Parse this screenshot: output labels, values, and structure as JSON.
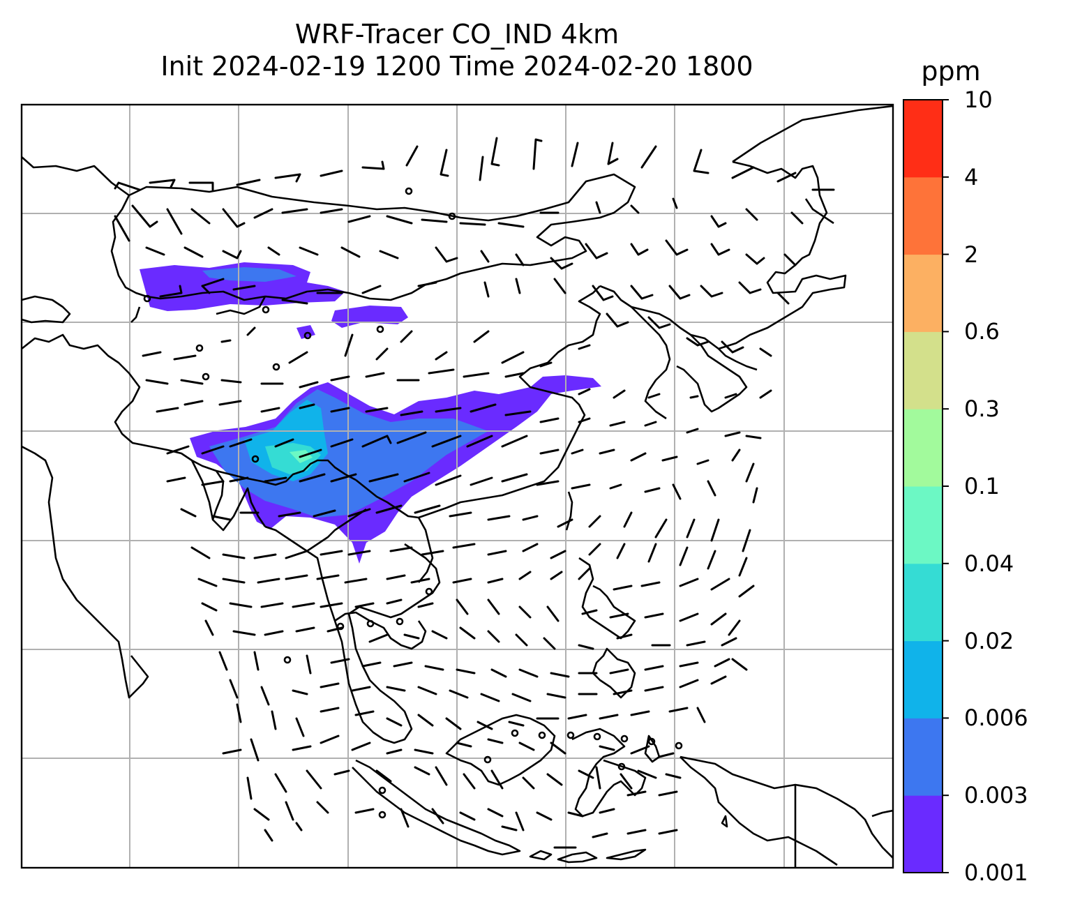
{
  "title": {
    "line1": "WRF-Tracer CO_IND 4km",
    "line2": "Init 2024-02-19 1200 Time 2024-02-20 1800"
  },
  "colorbar": {
    "unit": "ppm",
    "levels": [
      "0.001",
      "0.003",
      "0.006",
      "0.02",
      "0.04",
      "0.1",
      "0.3",
      "0.6",
      "2",
      "4",
      "10"
    ],
    "colors": [
      "#6a2bff",
      "#3d77f0",
      "#10b3ea",
      "#35dcd4",
      "#6cf8c4",
      "#a2fa9c",
      "#d3e08b",
      "#fcb062",
      "#fe7339",
      "#ff2e16"
    ]
  },
  "map": {
    "coastline_color": "#000000",
    "grid_color": "#b0b0b0",
    "concentration_colors": {
      "low": "#6a2bff",
      "mid": "#3d77f0",
      "high": "#10b3ea",
      "peak": "#35dcd4",
      "max": "#6cf8c4"
    }
  }
}
